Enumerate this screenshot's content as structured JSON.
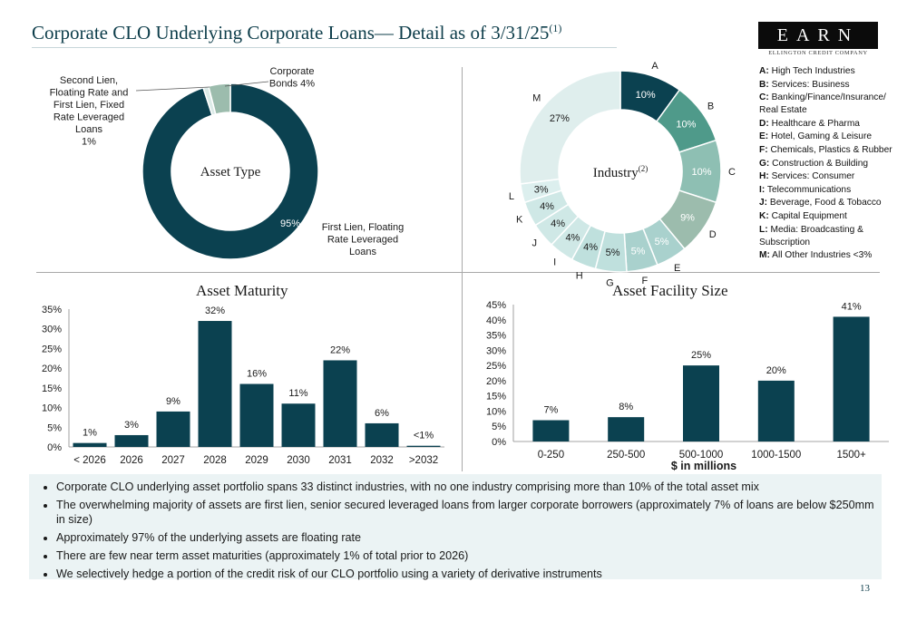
{
  "header": {
    "title": "Corporate CLO Underlying Corporate Loans— Detail as of 3/31/25",
    "title_sup": "(1)",
    "logo_text": "EARN",
    "logo_sub": "ELLINGTON CREDIT COMPANY"
  },
  "colors": {
    "dark": "#0b4150",
    "teal1": "#4f9a8a",
    "teal2": "#6fac9c",
    "teal3": "#8ebfb3",
    "light1": "#a9d1cd",
    "light2": "#bfe0dd",
    "light3": "#cfe8e6",
    "light4": "#dcefee",
    "grey_green": "#9cbcad"
  },
  "legend": [
    {
      "key": "A:",
      "text": "High Tech Industries"
    },
    {
      "key": "B:",
      "text": "Services: Business"
    },
    {
      "key": "C:",
      "text": "Banking/Finance/Insurance/ Real Estate"
    },
    {
      "key": "D:",
      "text": "Healthcare & Pharma"
    },
    {
      "key": "E:",
      "text": "Hotel, Gaming & Leisure"
    },
    {
      "key": "F:",
      "text": "Chemicals, Plastics & Rubber"
    },
    {
      "key": "G:",
      "text": "Construction & Building"
    },
    {
      "key": "H:",
      "text": "Services: Consumer"
    },
    {
      "key": "I:",
      "text": "Telecommunications"
    },
    {
      "key": "J:",
      "text": "Beverage, Food & Tobacco"
    },
    {
      "key": "K:",
      "text": "Capital Equipment"
    },
    {
      "key": "L:",
      "text": " Media: Broadcasting & Subscription"
    },
    {
      "key": "M:",
      "text": "All Other Industries <3%"
    }
  ],
  "bullets": [
    "Corporate CLO underlying asset portfolio spans 33 distinct industries, with no one industry comprising more than 10% of the total asset mix",
    "The overwhelming majority of assets are first lien, senior secured leveraged loans from larger corporate borrowers (approximately 7% of loans are below $250mm in size)",
    "Approximately 97% of the underlying assets are floating rate",
    "There are few near term asset maturities (approximately 1% of total prior to 2026)",
    "We selectively hedge a portion of the credit risk of our CLO portfolio using a variety of derivative instruments"
  ],
  "page_number": "13",
  "chart_data": [
    {
      "type": "pie",
      "title": "Asset Type",
      "slices": [
        {
          "label": "First Lien, Floating Rate Leveraged Loans",
          "value": 95,
          "value_label": "95%"
        },
        {
          "label": "Second Lien, Floating Rate and First Lien, Fixed Rate Leveraged Loans",
          "value": 1,
          "value_label": "1%"
        },
        {
          "label": "Corporate Bonds",
          "value": 4,
          "value_label": "4%"
        }
      ],
      "outside_labels": [
        [
          "Second Lien,",
          "Floating Rate and",
          "First Lien, Fixed",
          "Rate Leveraged",
          "Loans",
          "1%"
        ],
        [
          "Corporate",
          "Bonds  4%"
        ],
        [
          "First Lien, Floating",
          "Rate Leveraged",
          "Loans"
        ]
      ]
    },
    {
      "type": "pie",
      "title": "Industry",
      "title_sup": "(2)",
      "slices": [
        {
          "label": "A",
          "value": 10,
          "value_label": "10%"
        },
        {
          "label": "B",
          "value": 10,
          "value_label": "10%"
        },
        {
          "label": "C",
          "value": 10,
          "value_label": "10%"
        },
        {
          "label": "D",
          "value": 9,
          "value_label": "9%"
        },
        {
          "label": "E",
          "value": 5,
          "value_label": "5%"
        },
        {
          "label": "F",
          "value": 5,
          "value_label": "5%"
        },
        {
          "label": "G",
          "value": 5,
          "value_label": "5%"
        },
        {
          "label": "H",
          "value": 4,
          "value_label": "4%"
        },
        {
          "label": "I",
          "value": 4,
          "value_label": "4%"
        },
        {
          "label": "J",
          "value": 4,
          "value_label": "4%"
        },
        {
          "label": "K",
          "value": 4,
          "value_label": "4%"
        },
        {
          "label": "L",
          "value": 3,
          "value_label": "3%"
        },
        {
          "label": "M",
          "value": 27,
          "value_label": "27%"
        }
      ]
    },
    {
      "type": "bar",
      "title": "Asset Maturity",
      "categories": [
        "< 2026",
        "2026",
        "2027",
        "2028",
        "2029",
        "2030",
        "2031",
        "2032",
        ">2032"
      ],
      "values": [
        1,
        3,
        9,
        32,
        16,
        11,
        22,
        6,
        0.3
      ],
      "value_labels": [
        "1%",
        "3%",
        "9%",
        "32%",
        "16%",
        "11%",
        "22%",
        "6%",
        "<1%"
      ],
      "ylim": [
        0,
        35
      ],
      "yticks": [
        "0%",
        "5%",
        "10%",
        "15%",
        "20%",
        "25%",
        "30%",
        "35%"
      ],
      "xlabel": "",
      "ylabel": ""
    },
    {
      "type": "bar",
      "title": "Asset Facility Size",
      "categories": [
        "0-250",
        "250-500",
        "500-1000",
        "1000-1500",
        "1500+"
      ],
      "values": [
        7,
        8,
        25,
        20,
        41
      ],
      "value_labels": [
        "7%",
        "8%",
        "25%",
        "20%",
        "41%"
      ],
      "ylim": [
        0,
        45
      ],
      "yticks": [
        "0%",
        "5%",
        "10%",
        "15%",
        "20%",
        "25%",
        "30%",
        "35%",
        "40%",
        "45%"
      ],
      "xlabel": "$ in millions",
      "ylabel": ""
    }
  ]
}
